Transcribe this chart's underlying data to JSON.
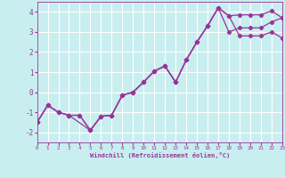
{
  "xlabel": "Windchill (Refroidissement éolien,°C)",
  "bg_color": "#c8eef0",
  "grid_color": "#ffffff",
  "line_color": "#993399",
  "x_min": 0,
  "x_max": 23,
  "y_min": -2.5,
  "y_max": 4.5,
  "yticks": [
    -2,
    -1,
    0,
    1,
    2,
    3,
    4
  ],
  "xticks": [
    0,
    1,
    2,
    3,
    4,
    5,
    6,
    7,
    8,
    9,
    10,
    11,
    12,
    13,
    14,
    15,
    16,
    17,
    18,
    19,
    20,
    21,
    22,
    23
  ],
  "line1_x": [
    0,
    1,
    2,
    3,
    4,
    5,
    6,
    7,
    8,
    9,
    10,
    11,
    12,
    13,
    14,
    15,
    16,
    17,
    18,
    19,
    20,
    21,
    22,
    23
  ],
  "line1_y": [
    -1.5,
    -0.65,
    -1.0,
    -1.15,
    -1.15,
    -1.9,
    -1.2,
    -1.15,
    -0.15,
    0.0,
    0.5,
    1.05,
    1.3,
    0.5,
    1.6,
    2.5,
    3.3,
    4.2,
    3.8,
    3.85,
    3.85,
    3.85,
    4.05,
    3.7
  ],
  "line2_x": [
    0,
    1,
    2,
    3,
    5,
    6,
    7,
    8,
    9,
    10,
    11,
    12,
    13,
    14,
    15,
    16,
    17,
    18,
    19,
    20,
    21,
    22,
    23
  ],
  "line2_y": [
    -1.5,
    -0.65,
    -1.0,
    -1.15,
    -1.9,
    -1.2,
    -1.15,
    -0.15,
    0.0,
    0.5,
    1.05,
    1.3,
    0.5,
    1.6,
    2.5,
    3.3,
    4.2,
    3.8,
    2.8,
    2.8,
    2.8,
    3.0,
    2.7
  ],
  "line3_x": [
    0,
    1,
    2,
    3,
    4,
    5,
    6,
    7,
    8,
    9,
    10,
    11,
    12,
    13,
    14,
    15,
    16,
    17,
    18,
    19,
    20,
    21,
    22,
    23
  ],
  "line3_y": [
    -1.5,
    -0.65,
    -1.0,
    -1.15,
    -1.15,
    -1.9,
    -1.2,
    -1.15,
    -0.15,
    0.0,
    0.5,
    1.05,
    1.3,
    0.5,
    1.6,
    2.5,
    3.3,
    4.2,
    3.0,
    3.2,
    3.2,
    3.2,
    3.5,
    3.7
  ]
}
